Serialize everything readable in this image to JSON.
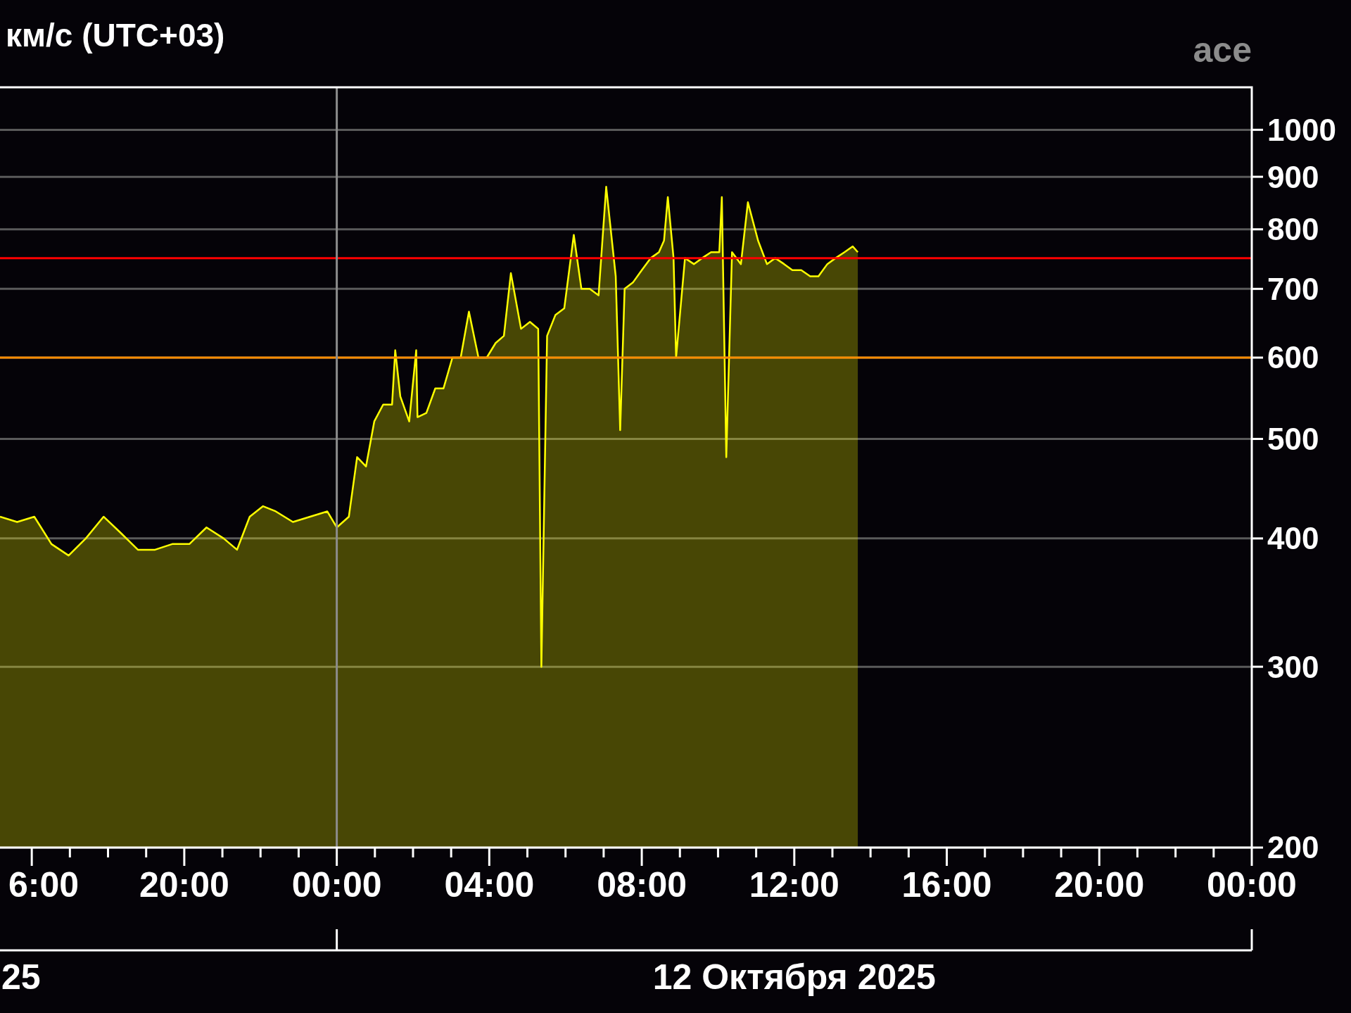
{
  "chart_data": {
    "type": "area",
    "title": "км/с (UTC+03)",
    "x": [
      "2025-10-11T15:10",
      "2025-10-11T15:37",
      "2025-10-11T16:04",
      "2025-10-11T16:31",
      "2025-10-11T16:58",
      "2025-10-11T17:25",
      "2025-10-11T17:53",
      "2025-10-11T18:20",
      "2025-10-11T18:47",
      "2025-10-11T19:14",
      "2025-10-11T19:41",
      "2025-10-11T20:08",
      "2025-10-11T20:35",
      "2025-10-11T21:02",
      "2025-10-11T21:23",
      "2025-10-11T21:43",
      "2025-10-11T22:04",
      "2025-10-11T22:24",
      "2025-10-11T22:51",
      "2025-10-11T23:18",
      "2025-10-11T23:45",
      "2025-10-12T00:00",
      "2025-10-12T00:19",
      "2025-10-12T00:32",
      "2025-10-12T00:46",
      "2025-10-12T00:59",
      "2025-10-12T01:13",
      "2025-10-12T01:27",
      "2025-10-12T01:32",
      "2025-10-12T01:40",
      "2025-10-12T01:54",
      "2025-10-12T02:05",
      "2025-10-12T02:07",
      "2025-10-12T02:21",
      "2025-10-12T02:35",
      "2025-10-12T02:48",
      "2025-10-12T03:02",
      "2025-10-12T03:15",
      "2025-10-12T03:28",
      "2025-10-12T03:43",
      "2025-10-12T03:56",
      "2025-10-12T04:10",
      "2025-10-12T04:23",
      "2025-10-12T04:34",
      "2025-10-12T04:50",
      "2025-10-12T05:04",
      "2025-10-12T05:17",
      "2025-10-12T05:22",
      "2025-10-12T05:31",
      "2025-10-12T05:44",
      "2025-10-12T05:58",
      "2025-10-12T06:13",
      "2025-10-12T06:25",
      "2025-10-12T06:38",
      "2025-10-12T06:52",
      "2025-10-12T07:04",
      "2025-10-12T07:19",
      "2025-10-12T07:26",
      "2025-10-12T07:33",
      "2025-10-12T07:46",
      "2025-10-12T08:00",
      "2025-10-12T08:14",
      "2025-10-12T08:27",
      "2025-10-12T08:35",
      "2025-10-12T08:41",
      "2025-10-12T08:50",
      "2025-10-12T08:54",
      "2025-10-12T09:08",
      "2025-10-12T09:22",
      "2025-10-12T09:35",
      "2025-10-12T09:49",
      "2025-10-12T10:02",
      "2025-10-12T10:06",
      "2025-10-12T10:13",
      "2025-10-12T10:22",
      "2025-10-12T10:36",
      "2025-10-12T10:47",
      "2025-10-12T11:03",
      "2025-10-12T11:17",
      "2025-10-12T11:30",
      "2025-10-12T11:44",
      "2025-10-12T11:57",
      "2025-10-12T12:11",
      "2025-10-12T12:25",
      "2025-10-12T12:38",
      "2025-10-12T12:52",
      "2025-10-12T13:05",
      "2025-10-12T13:19",
      "2025-10-12T13:32",
      "2025-10-12T13:40"
    ],
    "series": [
      {
        "color": "#ffff00",
        "values": [
          420,
          415,
          420,
          395,
          385,
          400,
          420,
          405,
          390,
          390,
          395,
          395,
          410,
          400,
          390,
          420,
          430,
          425,
          415,
          420,
          425,
          410,
          420,
          480,
          470,
          520,
          540,
          540,
          610,
          550,
          520,
          610,
          525,
          530,
          560,
          560,
          600,
          600,
          665,
          600,
          600,
          620,
          630,
          725,
          640,
          650,
          640,
          300,
          630,
          660,
          670,
          790,
          700,
          700,
          690,
          880,
          720,
          510,
          700,
          710,
          730,
          750,
          760,
          780,
          860,
          750,
          600,
          750,
          740,
          750,
          760,
          760,
          860,
          480,
          760,
          740,
          850,
          780,
          740,
          750,
          740,
          730,
          730,
          720,
          720,
          740,
          750,
          760,
          770,
          760
        ]
      }
    ],
    "xlim": [
      "2025-10-11T15:10",
      "2025-10-13T00:00"
    ],
    "xticks": [
      {
        "value": "2025-10-11T16:00",
        "label": "6:00"
      },
      {
        "value": "2025-10-11T17:00",
        "label": null
      },
      {
        "value": "2025-10-11T18:00",
        "label": null
      },
      {
        "value": "2025-10-11T19:00",
        "label": null
      },
      {
        "value": "2025-10-11T20:00",
        "label": "20:00"
      },
      {
        "value": "2025-10-11T21:00",
        "label": null
      },
      {
        "value": "2025-10-11T22:00",
        "label": null
      },
      {
        "value": "2025-10-11T23:00",
        "label": null
      },
      {
        "value": "2025-10-12T00:00",
        "label": "00:00"
      },
      {
        "value": "2025-10-12T01:00",
        "label": null
      },
      {
        "value": "2025-10-12T02:00",
        "label": null
      },
      {
        "value": "2025-10-12T03:00",
        "label": null
      },
      {
        "value": "2025-10-12T04:00",
        "label": "04:00"
      },
      {
        "value": "2025-10-12T05:00",
        "label": null
      },
      {
        "value": "2025-10-12T06:00",
        "label": null
      },
      {
        "value": "2025-10-12T07:00",
        "label": null
      },
      {
        "value": "2025-10-12T08:00",
        "label": "08:00"
      },
      {
        "value": "2025-10-12T09:00",
        "label": null
      },
      {
        "value": "2025-10-12T10:00",
        "label": null
      },
      {
        "value": "2025-10-12T11:00",
        "label": null
      },
      {
        "value": "2025-10-12T12:00",
        "label": "12:00"
      },
      {
        "value": "2025-10-12T13:00",
        "label": null
      },
      {
        "value": "2025-10-12T14:00",
        "label": null
      },
      {
        "value": "2025-10-12T15:00",
        "label": null
      },
      {
        "value": "2025-10-12T16:00",
        "label": "16:00"
      },
      {
        "value": "2025-10-12T17:00",
        "label": null
      },
      {
        "value": "2025-10-12T18:00",
        "label": null
      },
      {
        "value": "2025-10-12T19:00",
        "label": null
      },
      {
        "value": "2025-10-12T20:00",
        "label": "20:00"
      },
      {
        "value": "2025-10-12T21:00",
        "label": null
      },
      {
        "value": "2025-10-12T22:00",
        "label": null
      },
      {
        "value": "2025-10-12T23:00",
        "label": null
      },
      {
        "value": "2025-10-13T00:00",
        "label": "00:00"
      }
    ],
    "ylim": [
      200,
      1100
    ],
    "yticks": [
      200,
      300,
      400,
      500,
      600,
      700,
      800,
      900,
      1000
    ],
    "log": true,
    "grid": "y",
    "ref_lines": [
      {
        "axis": "y",
        "value": 600,
        "color": "#ff8c00"
      },
      {
        "axis": "y",
        "value": 750,
        "color": "#ff0000"
      },
      {
        "axis": "x",
        "value": "2025-10-12T00:00",
        "color": "#8c8c8c"
      }
    ],
    "annotations": [
      "25",
      "12 Октября 2025",
      "ace"
    ]
  }
}
